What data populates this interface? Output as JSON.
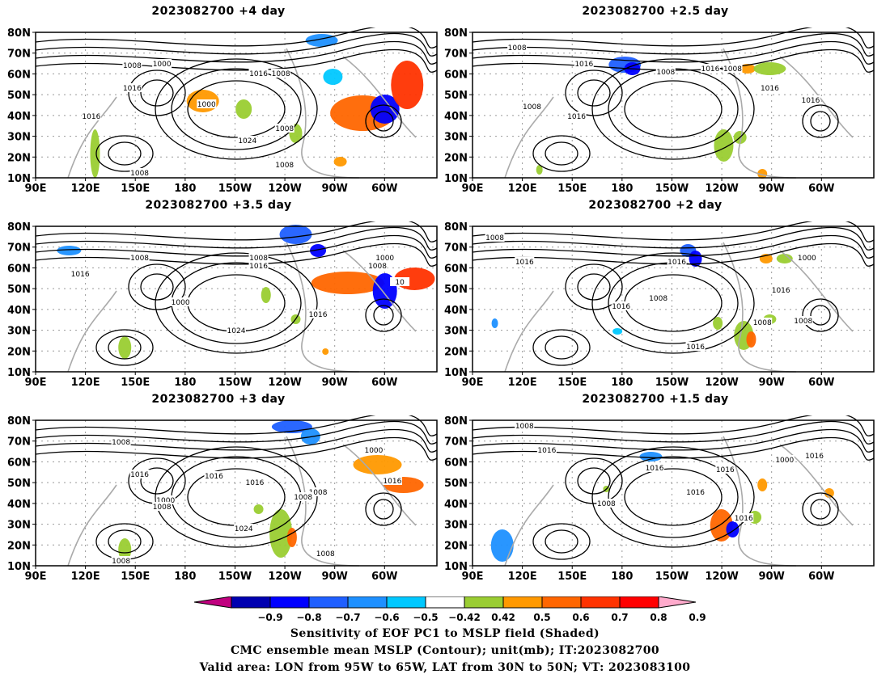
{
  "panels": [
    {
      "title": "2023082700  +4 day"
    },
    {
      "title": "2023082700  +2.5  day"
    },
    {
      "title": "2023082700  +3.5  day"
    },
    {
      "title": "2023082700  +2  day"
    },
    {
      "title": "2023082700  +3  day"
    },
    {
      "title": "2023082700  +1.5  day"
    }
  ],
  "axes": {
    "lat_labels": [
      "80N",
      "70N",
      "60N",
      "50N",
      "40N",
      "30N",
      "20N",
      "10N"
    ],
    "lon_labels": [
      "90E",
      "120E",
      "150E",
      "180",
      "150W",
      "120W",
      "90W",
      "60W"
    ]
  },
  "colorbar": {
    "labels": [
      "−0.9",
      "−0.8",
      "−0.7",
      "−0.6",
      "−0.5",
      "−0.42",
      "0.42",
      "0.5",
      "0.6",
      "0.7",
      "0.8",
      "0.9"
    ],
    "colors": [
      "#c0007f",
      "#0000b0",
      "#0000ff",
      "#1f5fff",
      "#1e90ff",
      "#00c8ff",
      "#ffffff",
      "#9acd32",
      "#ff9900",
      "#ff6600",
      "#ff3300",
      "#ff0000",
      "#ffaacc"
    ]
  },
  "contour_labels": {
    "p0": [
      "1008",
      "1000",
      "1016",
      "1016",
      "1000",
      "1008",
      "1016",
      "1024",
      "1008",
      "1008",
      "1008"
    ],
    "p1": [
      "1008",
      "1016",
      "1008",
      "1016",
      "1008",
      "1016",
      "1008",
      "1016",
      "1016"
    ],
    "p2": [
      "1008",
      "1016",
      "1000",
      "1008",
      "1016",
      "1024",
      "1016",
      "1000",
      "1008",
      "10"
    ],
    "p3": [
      "1008",
      "1016",
      "1016",
      "1008",
      "1016",
      "1008",
      "1000",
      "1016",
      "1008",
      "1016"
    ],
    "p4": [
      "1008",
      "1016",
      "1016",
      "1000",
      "1008",
      "1016",
      "1024",
      "1008",
      "1000",
      "1008",
      "1016",
      "1008",
      "1008"
    ],
    "p5": [
      "1008",
      "1016",
      "1016",
      "1016",
      "1008",
      "1016",
      "1016",
      "1000",
      "1016"
    ]
  },
  "caption": {
    "line1": "Sensitivity of EOF PC1 to MSLP field (Shaded)",
    "line2": "CMC ensemble mean MSLP (Contour); unit(mb); IT:2023082700",
    "line3": "Valid area: LON from 95W to 65W, LAT from 30N to 50N; VT: 2023083100"
  }
}
